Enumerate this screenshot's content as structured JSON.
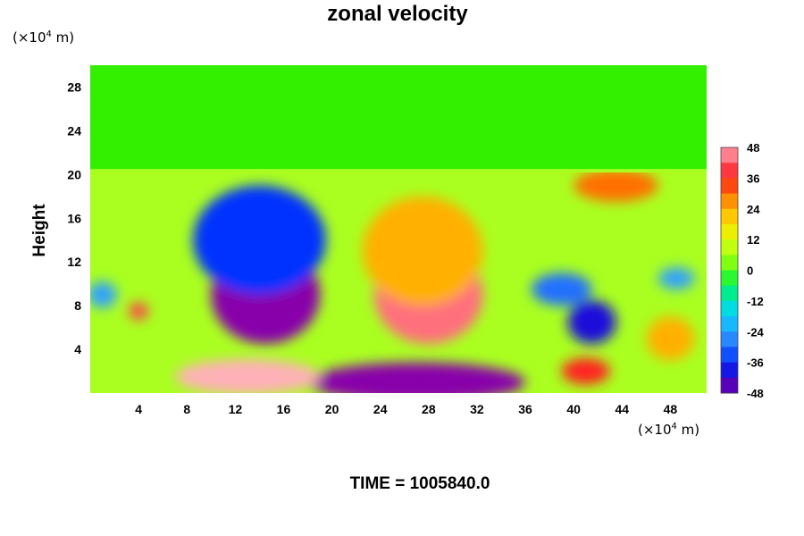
{
  "chart_data": {
    "type": "heatmap",
    "title": "zonal velocity",
    "ylabel": "Height",
    "xunit": {
      "prefix": "(×10",
      "exp": "4",
      "suffix": " m)"
    },
    "yunit": {
      "prefix": "(×10",
      "exp": "4",
      "suffix": " m)"
    },
    "xlim": [
      0,
      51
    ],
    "ylim": [
      0,
      30
    ],
    "xticks": [
      "4",
      "8",
      "12",
      "16",
      "20",
      "24",
      "28",
      "32",
      "36",
      "40",
      "44",
      "48"
    ],
    "yticks": [
      "4",
      "8",
      "12",
      "16",
      "20",
      "24",
      "28"
    ],
    "colorbar": {
      "min": -48,
      "max": 48,
      "tick_labels": [
        "48",
        "36",
        "24",
        "12",
        "0",
        "-12",
        "-24",
        "-36",
        "-48"
      ]
    },
    "grid": false,
    "features": [
      {
        "x": 14.5,
        "y": 9.0,
        "value": -48,
        "rx": 4.5,
        "ry": 4.5
      },
      {
        "x": 14.0,
        "y": 14.0,
        "value": -36,
        "rx": 5.5,
        "ry": 5.0
      },
      {
        "x": 28.0,
        "y": 9.0,
        "value": 44,
        "rx": 4.5,
        "ry": 4.5
      },
      {
        "x": 27.5,
        "y": 13.0,
        "value": 24,
        "rx": 5.0,
        "ry": 5.0
      },
      {
        "x": 27.0,
        "y": 1.0,
        "value": -48,
        "rx": 9.0,
        "ry": 1.8
      },
      {
        "x": 13.0,
        "y": 1.5,
        "value": 48,
        "rx": 6.0,
        "ry": 1.6
      },
      {
        "x": 41.5,
        "y": 6.5,
        "value": -40,
        "rx": 2.0,
        "ry": 2.0
      },
      {
        "x": 39.0,
        "y": 9.5,
        "value": -30,
        "rx": 2.5,
        "ry": 1.5
      },
      {
        "x": 43.5,
        "y": 19.0,
        "value": 30,
        "rx": 3.5,
        "ry": 1.5
      },
      {
        "x": 4.0,
        "y": 7.5,
        "value": 40,
        "rx": 0.8,
        "ry": 0.8
      },
      {
        "x": 41.0,
        "y": 2.0,
        "value": 36,
        "rx": 2.0,
        "ry": 1.2
      },
      {
        "x": 48.0,
        "y": 5.0,
        "value": 24,
        "rx": 2.0,
        "ry": 2.0
      },
      {
        "x": 1.0,
        "y": 9.0,
        "value": -24,
        "rx": 1.2,
        "ry": 1.2
      },
      {
        "x": 48.5,
        "y": 10.5,
        "value": -24,
        "rx": 1.5,
        "ry": 1.0
      }
    ],
    "upper_region": {
      "y_from": 20.5,
      "value": 0
    }
  },
  "footer": {
    "time_label": "TIME = 1005840.0"
  }
}
